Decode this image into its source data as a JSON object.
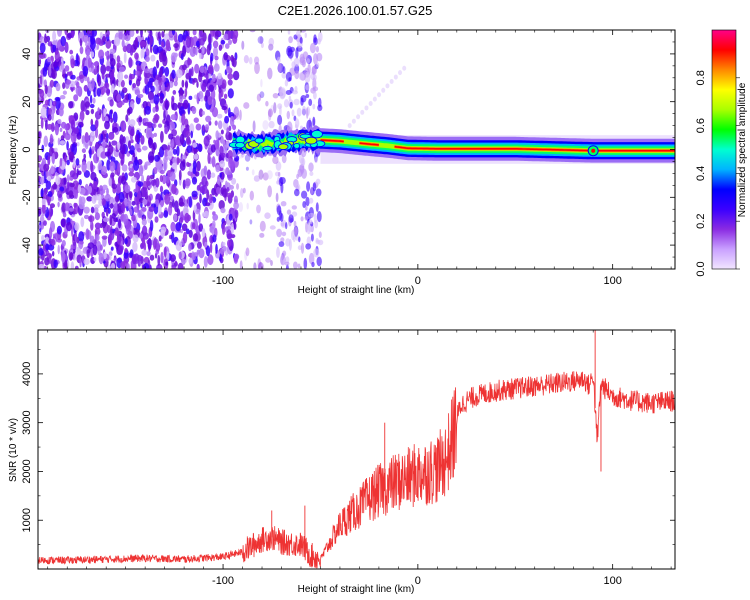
{
  "chart_data": [
    {
      "type": "heatmap",
      "title": "C2E1.2026.100.01.57.G25",
      "xlabel": "Height of straight line (km)",
      "ylabel": "Frequency (Hz)",
      "xlim": [
        -195,
        132
      ],
      "ylim": [
        -50,
        50
      ],
      "xticks": [
        -100,
        0,
        100
      ],
      "yticks": [
        -40,
        -20,
        0,
        20,
        40
      ],
      "xtick_labels": [
        "-100",
        "0",
        "100"
      ],
      "ytick_labels": [
        "-40",
        "-20",
        "0",
        "20",
        "40"
      ],
      "colorbar": {
        "label": "Normalized spectral amplitude",
        "range": [
          0,
          1
        ],
        "ticks": [
          0.0,
          0.2,
          0.4,
          0.6,
          0.8
        ],
        "tick_labels": [
          "0.0",
          "0.2",
          "0.4",
          "0.6",
          "0.8"
        ],
        "colors": [
          "#f2e6ff",
          "#c9a0ff",
          "#8a2be2",
          "#3a00ff",
          "#0000ff",
          "#00b4ff",
          "#00ffd0",
          "#00ff00",
          "#aaff00",
          "#ffff00",
          "#ff8800",
          "#ff0000",
          "#ff0088"
        ]
      },
      "noise_region_x": [
        -195,
        -50
      ],
      "gap_region_x": [
        -93,
        -72
      ],
      "signal_track": [
        {
          "x": -95,
          "y": 2.5
        },
        {
          "x": -80,
          "y": 2.0
        },
        {
          "x": -65,
          "y": 3.5
        },
        {
          "x": -52,
          "y": 4.0
        },
        {
          "x": -40,
          "y": 3.5
        },
        {
          "x": -28,
          "y": 2.5
        },
        {
          "x": -15,
          "y": 1.5
        },
        {
          "x": -5,
          "y": 0.5
        },
        {
          "x": 10,
          "y": 0.3
        },
        {
          "x": 50,
          "y": 0.3
        },
        {
          "x": 90,
          "y": -0.5
        },
        {
          "x": 132,
          "y": -0.5
        }
      ]
    },
    {
      "type": "line",
      "xlabel": "Height of straight line (km)",
      "ylabel": "SNR (10 * v/v)",
      "xlim": [
        -195,
        132
      ],
      "ylim": [
        0,
        4900
      ],
      "xticks": [
        -100,
        0,
        100
      ],
      "yticks": [
        1000,
        2000,
        3000,
        4000
      ],
      "xtick_labels": [
        "-100",
        "0",
        "100"
      ],
      "ytick_labels": [
        "1000",
        "2000",
        "3000",
        "4000"
      ],
      "color": "#ee3333",
      "series": [
        {
          "name": "SNR",
          "x": [
            -195,
            -180,
            -160,
            -140,
            -120,
            -100,
            -90,
            -80,
            -75,
            -70,
            -65,
            -60,
            -55,
            -50,
            -45,
            -40,
            -35,
            -30,
            -25,
            -20,
            -15,
            -10,
            -5,
            0,
            5,
            10,
            15,
            18,
            20,
            22,
            25,
            30,
            40,
            50,
            60,
            70,
            80,
            85,
            88,
            90,
            92,
            94,
            96,
            100,
            110,
            120,
            132
          ],
          "values": [
            180,
            180,
            200,
            220,
            200,
            250,
            350,
            600,
            650,
            550,
            520,
            500,
            280,
            200,
            550,
            900,
            1100,
            1250,
            1450,
            1600,
            1700,
            1800,
            1850,
            1950,
            2000,
            2050,
            2300,
            2700,
            3100,
            3350,
            3450,
            3550,
            3650,
            3700,
            3750,
            3800,
            3850,
            3900,
            3750,
            4000,
            2600,
            3800,
            3700,
            3550,
            3450,
            3400,
            3450
          ]
        }
      ],
      "annotations": [
        {
          "x": -58,
          "value": 1300,
          "label": ""
        },
        {
          "x": -75,
          "value": 1200,
          "label": ""
        },
        {
          "x": -17,
          "value": 3000,
          "label": ""
        },
        {
          "x": 91,
          "value": 4900,
          "label": ""
        },
        {
          "x": 94,
          "value": 2000,
          "label": ""
        }
      ]
    }
  ]
}
